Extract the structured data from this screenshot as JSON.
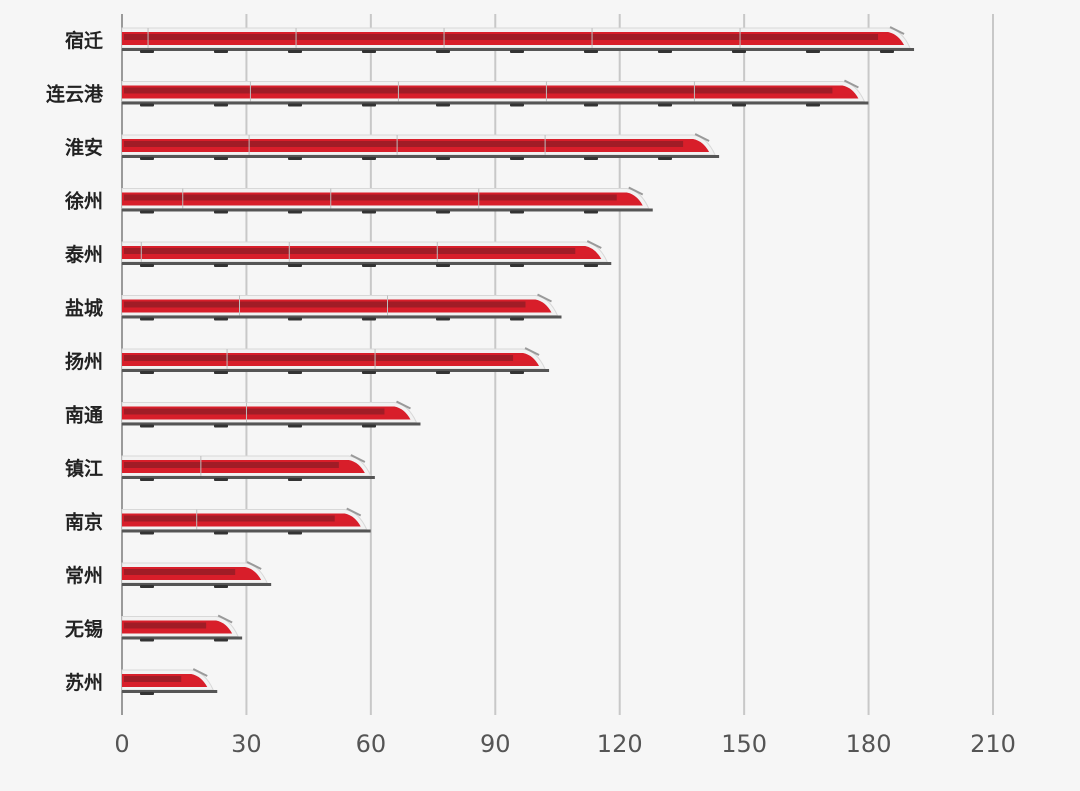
{
  "chart_data": {
    "type": "bar",
    "orientation": "horizontal",
    "categories": [
      "宿迁",
      "连云港",
      "淮安",
      "徐州",
      "泰州",
      "盐城",
      "扬州",
      "南通",
      "镇江",
      "南京",
      "常州",
      "无锡",
      "苏州"
    ],
    "values": [
      190,
      179,
      143,
      127,
      117,
      105,
      102,
      71,
      60,
      59,
      35,
      28,
      22
    ],
    "title": "",
    "xlabel": "",
    "ylabel": "",
    "xlim": [
      0,
      210
    ],
    "xticks": [
      "0",
      "30",
      "60",
      "90",
      "120",
      "150",
      "180",
      "210"
    ],
    "grid": "vertical",
    "bar_style": "high-speed train",
    "colors": {
      "train_red": "#d81e2a",
      "train_body": "#f2f2f2",
      "window_band": "#9a1c26",
      "grid": "#c8c8c8",
      "axis": "#9a9a9a",
      "tick_text": "#555555",
      "label_text": "#222222",
      "background": "#f6f6f6"
    }
  }
}
